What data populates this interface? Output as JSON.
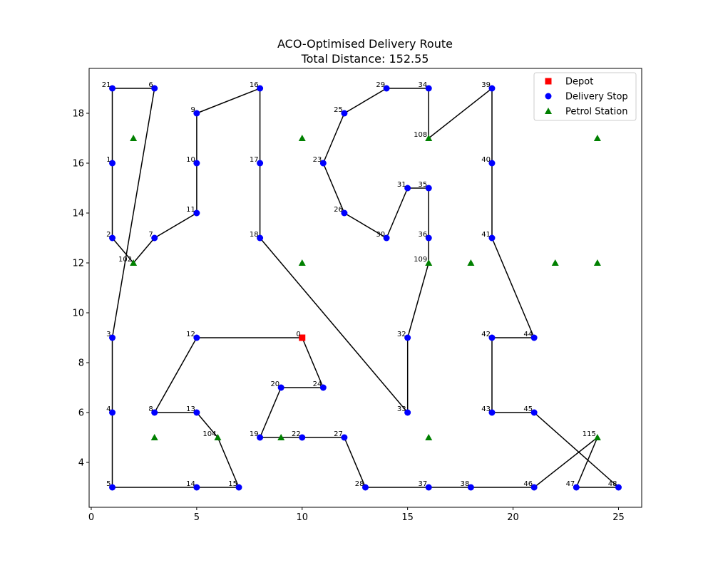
{
  "chart_data": {
    "type": "scatter",
    "title": "ACO-Optimised Delivery Route",
    "subtitle": "Total Distance: 152.55",
    "xlabel": "",
    "ylabel": "",
    "xlim": [
      -0.1,
      26.1
    ],
    "ylim": [
      2.2,
      19.8
    ],
    "xticks": [
      0,
      5,
      10,
      15,
      20,
      25
    ],
    "yticks": [
      4,
      6,
      8,
      10,
      12,
      14,
      16,
      18
    ],
    "grid": false,
    "legend_position": "top-right",
    "legend": [
      {
        "label": "Depot",
        "marker": "square",
        "color": "#ff0000"
      },
      {
        "label": "Delivery Stop",
        "marker": "circle",
        "color": "#0000ff"
      },
      {
        "label": "Petrol Station",
        "marker": "triangle",
        "color": "#008000"
      }
    ],
    "depot": {
      "id": "0",
      "x": 10,
      "y": 9
    },
    "stops": [
      {
        "id": "1",
        "x": 1,
        "y": 16
      },
      {
        "id": "2",
        "x": 1,
        "y": 13
      },
      {
        "id": "3",
        "x": 1,
        "y": 9
      },
      {
        "id": "4",
        "x": 1,
        "y": 6
      },
      {
        "id": "5",
        "x": 1,
        "y": 3
      },
      {
        "id": "6",
        "x": 3,
        "y": 19
      },
      {
        "id": "7",
        "x": 3,
        "y": 13
      },
      {
        "id": "8",
        "x": 3,
        "y": 6
      },
      {
        "id": "9",
        "x": 5,
        "y": 18
      },
      {
        "id": "10",
        "x": 5,
        "y": 16
      },
      {
        "id": "11",
        "x": 5,
        "y": 14
      },
      {
        "id": "12",
        "x": 5,
        "y": 9
      },
      {
        "id": "13",
        "x": 5,
        "y": 6
      },
      {
        "id": "14",
        "x": 5,
        "y": 3
      },
      {
        "id": "15",
        "x": 7,
        "y": 3
      },
      {
        "id": "16",
        "x": 8,
        "y": 19
      },
      {
        "id": "17",
        "x": 8,
        "y": 16
      },
      {
        "id": "18",
        "x": 8,
        "y": 13
      },
      {
        "id": "19",
        "x": 8,
        "y": 5
      },
      {
        "id": "20",
        "x": 9,
        "y": 7
      },
      {
        "id": "21",
        "x": 1,
        "y": 19
      },
      {
        "id": "22",
        "x": 10,
        "y": 5
      },
      {
        "id": "23",
        "x": 11,
        "y": 16
      },
      {
        "id": "24",
        "x": 11,
        "y": 7
      },
      {
        "id": "25",
        "x": 12,
        "y": 18
      },
      {
        "id": "26",
        "x": 12,
        "y": 14
      },
      {
        "id": "27",
        "x": 12,
        "y": 5
      },
      {
        "id": "28",
        "x": 13,
        "y": 3
      },
      {
        "id": "29",
        "x": 14,
        "y": 19
      },
      {
        "id": "30",
        "x": 14,
        "y": 13
      },
      {
        "id": "31",
        "x": 15,
        "y": 15
      },
      {
        "id": "32",
        "x": 15,
        "y": 9
      },
      {
        "id": "33",
        "x": 15,
        "y": 6
      },
      {
        "id": "34",
        "x": 16,
        "y": 19
      },
      {
        "id": "35",
        "x": 16,
        "y": 15
      },
      {
        "id": "36",
        "x": 16,
        "y": 13
      },
      {
        "id": "37",
        "x": 16,
        "y": 3
      },
      {
        "id": "38",
        "x": 18,
        "y": 3
      },
      {
        "id": "39",
        "x": 19,
        "y": 19
      },
      {
        "id": "40",
        "x": 19,
        "y": 16
      },
      {
        "id": "41",
        "x": 19,
        "y": 13
      },
      {
        "id": "42",
        "x": 19,
        "y": 9
      },
      {
        "id": "43",
        "x": 19,
        "y": 6
      },
      {
        "id": "44",
        "x": 21,
        "y": 9
      },
      {
        "id": "45",
        "x": 21,
        "y": 6
      },
      {
        "id": "46",
        "x": 21,
        "y": 3
      },
      {
        "id": "47",
        "x": 23,
        "y": 3
      },
      {
        "id": "48",
        "x": 25,
        "y": 3
      }
    ],
    "petrol_stations": [
      {
        "id": "",
        "x": 2,
        "y": 17
      },
      {
        "id": "",
        "x": 10,
        "y": 17
      },
      {
        "id": "108",
        "x": 16,
        "y": 17
      },
      {
        "id": "",
        "x": 24,
        "y": 17
      },
      {
        "id": "102",
        "x": 2,
        "y": 12
      },
      {
        "id": "",
        "x": 10,
        "y": 12
      },
      {
        "id": "109",
        "x": 16,
        "y": 12
      },
      {
        "id": "",
        "x": 18,
        "y": 12
      },
      {
        "id": "",
        "x": 22,
        "y": 12
      },
      {
        "id": "",
        "x": 24,
        "y": 12
      },
      {
        "id": "",
        "x": 3,
        "y": 5
      },
      {
        "id": "104",
        "x": 6,
        "y": 5
      },
      {
        "id": "",
        "x": 9,
        "y": 5
      },
      {
        "id": "",
        "x": 16,
        "y": 5
      },
      {
        "id": "115",
        "x": 24,
        "y": 5
      }
    ],
    "route": [
      [
        10,
        9
      ],
      [
        11,
        7
      ],
      [
        9,
        7
      ],
      [
        8,
        5
      ],
      [
        10,
        5
      ],
      [
        12,
        5
      ],
      [
        13,
        3
      ],
      [
        16,
        3
      ],
      [
        18,
        3
      ],
      [
        21,
        3
      ],
      [
        24,
        5
      ],
      [
        23,
        3
      ],
      [
        25,
        3
      ],
      [
        21,
        6
      ],
      [
        19,
        6
      ],
      [
        19,
        9
      ],
      [
        21,
        9
      ],
      [
        19,
        13
      ],
      [
        19,
        16
      ],
      [
        19,
        19
      ],
      [
        16,
        17
      ],
      [
        16,
        19
      ],
      [
        14,
        19
      ],
      [
        12,
        18
      ],
      [
        11,
        16
      ],
      [
        12,
        14
      ],
      [
        14,
        13
      ],
      [
        15,
        15
      ],
      [
        16,
        15
      ],
      [
        16,
        13
      ],
      [
        16,
        12
      ],
      [
        15,
        9
      ],
      [
        15,
        6
      ],
      [
        8,
        13
      ],
      [
        8,
        16
      ],
      [
        8,
        19
      ],
      [
        5,
        18
      ],
      [
        5,
        16
      ],
      [
        5,
        14
      ],
      [
        3,
        13
      ],
      [
        2,
        12
      ],
      [
        1,
        13
      ],
      [
        1,
        16
      ],
      [
        1,
        19
      ],
      [
        3,
        19
      ],
      [
        1,
        9
      ],
      [
        1,
        6
      ],
      [
        1,
        3
      ],
      [
        5,
        3
      ],
      [
        7,
        3
      ],
      [
        6,
        5
      ],
      [
        5,
        6
      ],
      [
        3,
        6
      ],
      [
        5,
        9
      ],
      [
        10,
        9
      ]
    ]
  }
}
